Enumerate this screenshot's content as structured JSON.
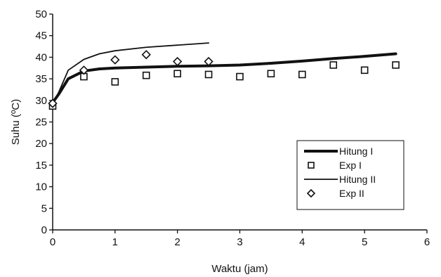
{
  "chart_data": {
    "type": "line",
    "title": "",
    "xlabel": "Waktu (jam)",
    "ylabel": "Suhu (ºC)",
    "xlim": [
      0,
      6
    ],
    "ylim": [
      0,
      50
    ],
    "xticks": [
      "0",
      "1",
      "2",
      "3",
      "4",
      "5",
      "6"
    ],
    "yticks": [
      "0",
      "5",
      "10",
      "15",
      "20",
      "25",
      "30",
      "35",
      "40",
      "45",
      "50"
    ],
    "grid": false,
    "legend_position": "bottom-right",
    "series": [
      {
        "name": "Hitung I",
        "kind": "line",
        "style": "thick",
        "color": "#111111",
        "x": [
          0,
          0.1,
          0.25,
          0.5,
          0.75,
          1.0,
          1.5,
          2.0,
          2.5,
          3.0,
          3.5,
          4.0,
          4.5,
          5.0,
          5.5
        ],
        "y": [
          29.5,
          31.5,
          35.0,
          36.8,
          37.3,
          37.5,
          37.7,
          37.9,
          38.0,
          38.2,
          38.6,
          39.1,
          39.7,
          40.2,
          40.8
        ]
      },
      {
        "name": "Exp I",
        "kind": "marker",
        "marker": "square",
        "color": "#111111",
        "x": [
          0,
          0.5,
          1.0,
          1.5,
          2.0,
          2.5,
          3.0,
          3.5,
          4.0,
          4.5,
          5.0,
          5.5
        ],
        "y": [
          28.7,
          35.5,
          34.3,
          35.8,
          36.2,
          36.0,
          35.5,
          36.2,
          36.0,
          38.2,
          37.0,
          38.2
        ]
      },
      {
        "name": "Hitung II",
        "kind": "line",
        "style": "thin",
        "color": "#111111",
        "x": [
          0,
          0.1,
          0.25,
          0.5,
          0.75,
          1.0,
          1.5,
          2.0,
          2.5
        ],
        "y": [
          29.0,
          32.0,
          37.0,
          39.5,
          40.8,
          41.5,
          42.3,
          42.8,
          43.3
        ]
      },
      {
        "name": "Exp II",
        "kind": "marker",
        "marker": "diamond",
        "color": "#111111",
        "x": [
          0,
          0.5,
          1.0,
          1.5,
          2.0,
          2.5
        ],
        "y": [
          29.3,
          37.0,
          39.4,
          40.6,
          39.0,
          39.0
        ]
      }
    ]
  }
}
